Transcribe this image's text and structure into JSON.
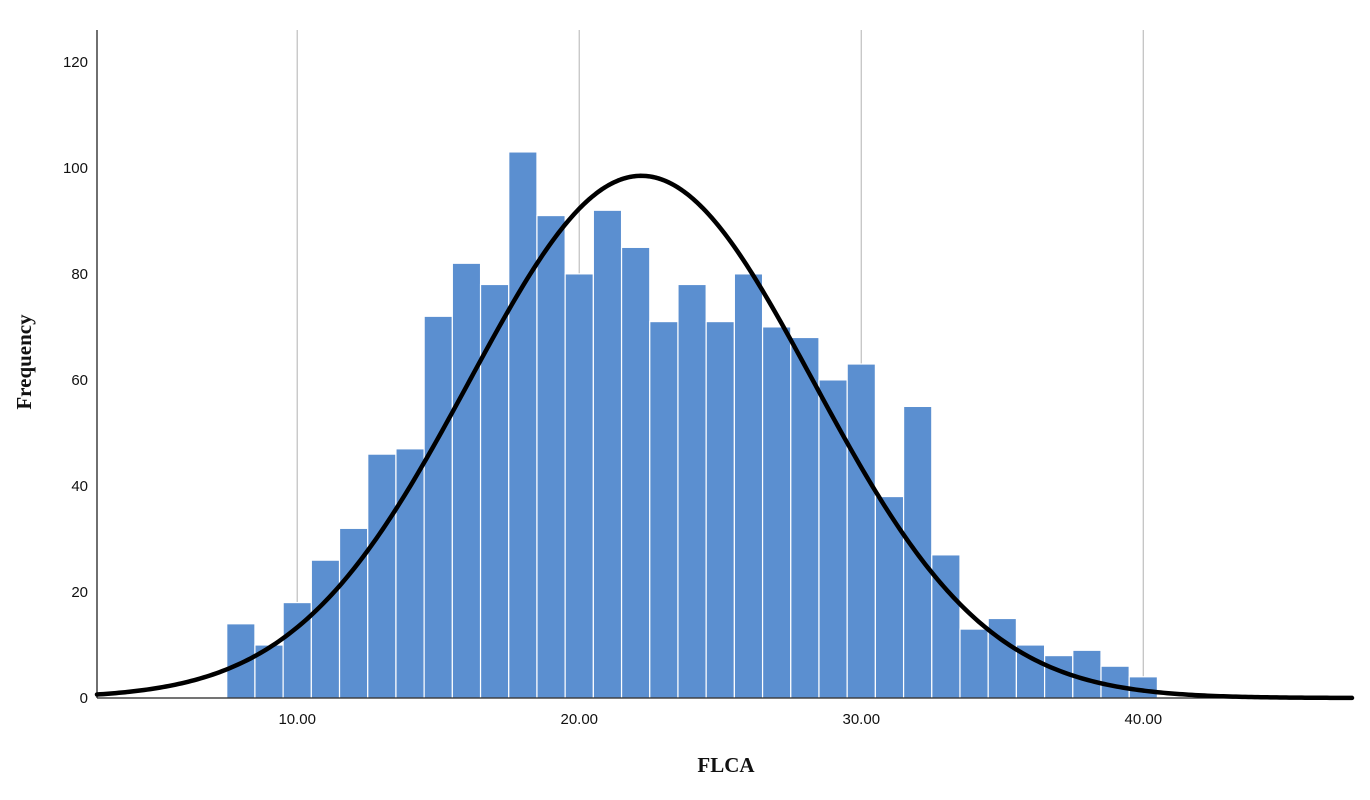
{
  "chart_data": {
    "type": "bar",
    "title": "",
    "xlabel": "FLCA",
    "ylabel": "Frequency",
    "xlim": [
      2.9,
      47.4
    ],
    "ylim": [
      0,
      126
    ],
    "x_ticks": [
      "10.00",
      "20.00",
      "30.00",
      "40.00"
    ],
    "x_tick_values": [
      10,
      20,
      30,
      40
    ],
    "y_ticks": [
      "0",
      "20",
      "40",
      "60",
      "80",
      "100",
      "120"
    ],
    "y_tick_values": [
      0,
      20,
      40,
      60,
      80,
      100,
      120
    ],
    "grid": "vertical",
    "bar_color": "#5b8fd0",
    "bar_edge_color": "#ffffff",
    "bins": {
      "start": 7.5,
      "width": 1.0,
      "counts": [
        14,
        10,
        18,
        26,
        32,
        46,
        47,
        72,
        82,
        78,
        103,
        91,
        80,
        92,
        85,
        71,
        78,
        71,
        80,
        70,
        68,
        60,
        63,
        38,
        55,
        27,
        13,
        15,
        10,
        8,
        9,
        6,
        4
      ]
    },
    "normal_curve": {
      "mean": 22.2,
      "std_dev": 6.1,
      "peak": 98.5,
      "color": "#000000"
    }
  }
}
